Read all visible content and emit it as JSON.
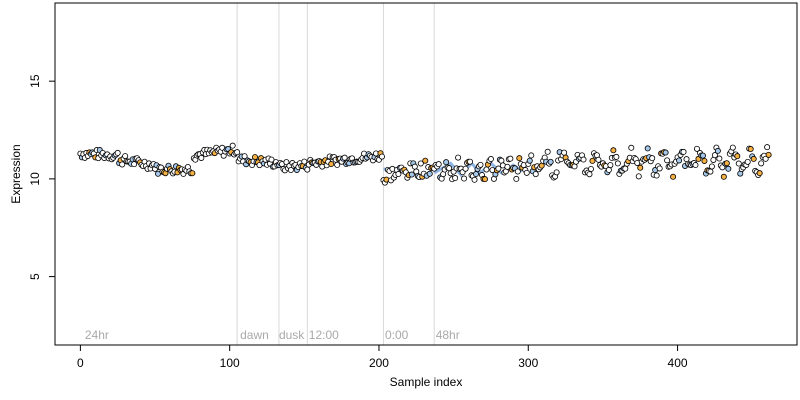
{
  "chart_data": {
    "type": "scatter",
    "xlabel": "Sample index",
    "ylabel": "Expression",
    "xlim": [
      -17,
      480
    ],
    "ylim": [
      1.5,
      19
    ],
    "x_ticks": [
      0,
      100,
      200,
      300,
      400
    ],
    "y_ticks": [
      5,
      10,
      15
    ],
    "vertical_lines_x": [
      105,
      133,
      152,
      203,
      237
    ],
    "annotations": [
      {
        "text": "24hr",
        "x": 3
      },
      {
        "text": "dawn",
        "x": 107
      },
      {
        "text": "dusk",
        "x": 133
      },
      {
        "text": "12:00",
        "x": 153
      },
      {
        "text": "0:00",
        "x": 204
      },
      {
        "text": "48hr",
        "x": 238
      }
    ],
    "annotation_y": 2,
    "point_count": 462,
    "series": [
      {
        "type": "line",
        "segments": [
          {
            "x": [
              25,
              35
            ],
            "y": [
              10.9,
              10.9
            ]
          },
          {
            "x": [
              203,
              210
            ],
            "y": [
              10.5,
              10.5
            ]
          },
          {
            "x": [
              237,
              248,
              255,
              262,
              268,
              275,
              282,
              290,
              296
            ],
            "y": [
              10.3,
              10.8,
              10.2,
              10.8,
              10.3,
              10.8,
              10.3,
              10.7,
              10.4
            ]
          }
        ]
      }
    ],
    "segment_baselines": [
      {
        "x": [
          0,
          25
        ],
        "y": [
          11.3,
          11.2
        ]
      },
      {
        "x": [
          25,
          50
        ],
        "y": [
          11.0,
          10.7
        ]
      },
      {
        "x": [
          50,
          75
        ],
        "y": [
          10.5,
          10.5
        ]
      },
      {
        "x": [
          75,
          105
        ],
        "y": [
          11.2,
          11.5
        ]
      },
      {
        "x": [
          105,
          133
        ],
        "y": [
          11.0,
          10.8
        ]
      },
      {
        "x": [
          133,
          152
        ],
        "y": [
          10.6,
          10.7
        ]
      },
      {
        "x": [
          152,
          203
        ],
        "y": [
          10.8,
          11.2
        ]
      },
      {
        "x": [
          203,
          237
        ],
        "y": [
          10.2,
          10.6
        ]
      },
      {
        "x": [
          237,
          300
        ],
        "y": [
          10.4,
          10.6
        ]
      },
      {
        "x": [
          300,
          462
        ],
        "y": [
          10.8,
          10.9
        ]
      }
    ],
    "colors": {
      "point_fill_default": "#ffffff",
      "point_fill_blue": "#a6c8ea",
      "point_fill_orange": "#f5b041",
      "point_stroke": "#000000",
      "line_blue": "#8fb4e3",
      "grid_line": "#d9d9d9",
      "axis": "#000000",
      "annotation_text": "#a9a9a9"
    }
  }
}
